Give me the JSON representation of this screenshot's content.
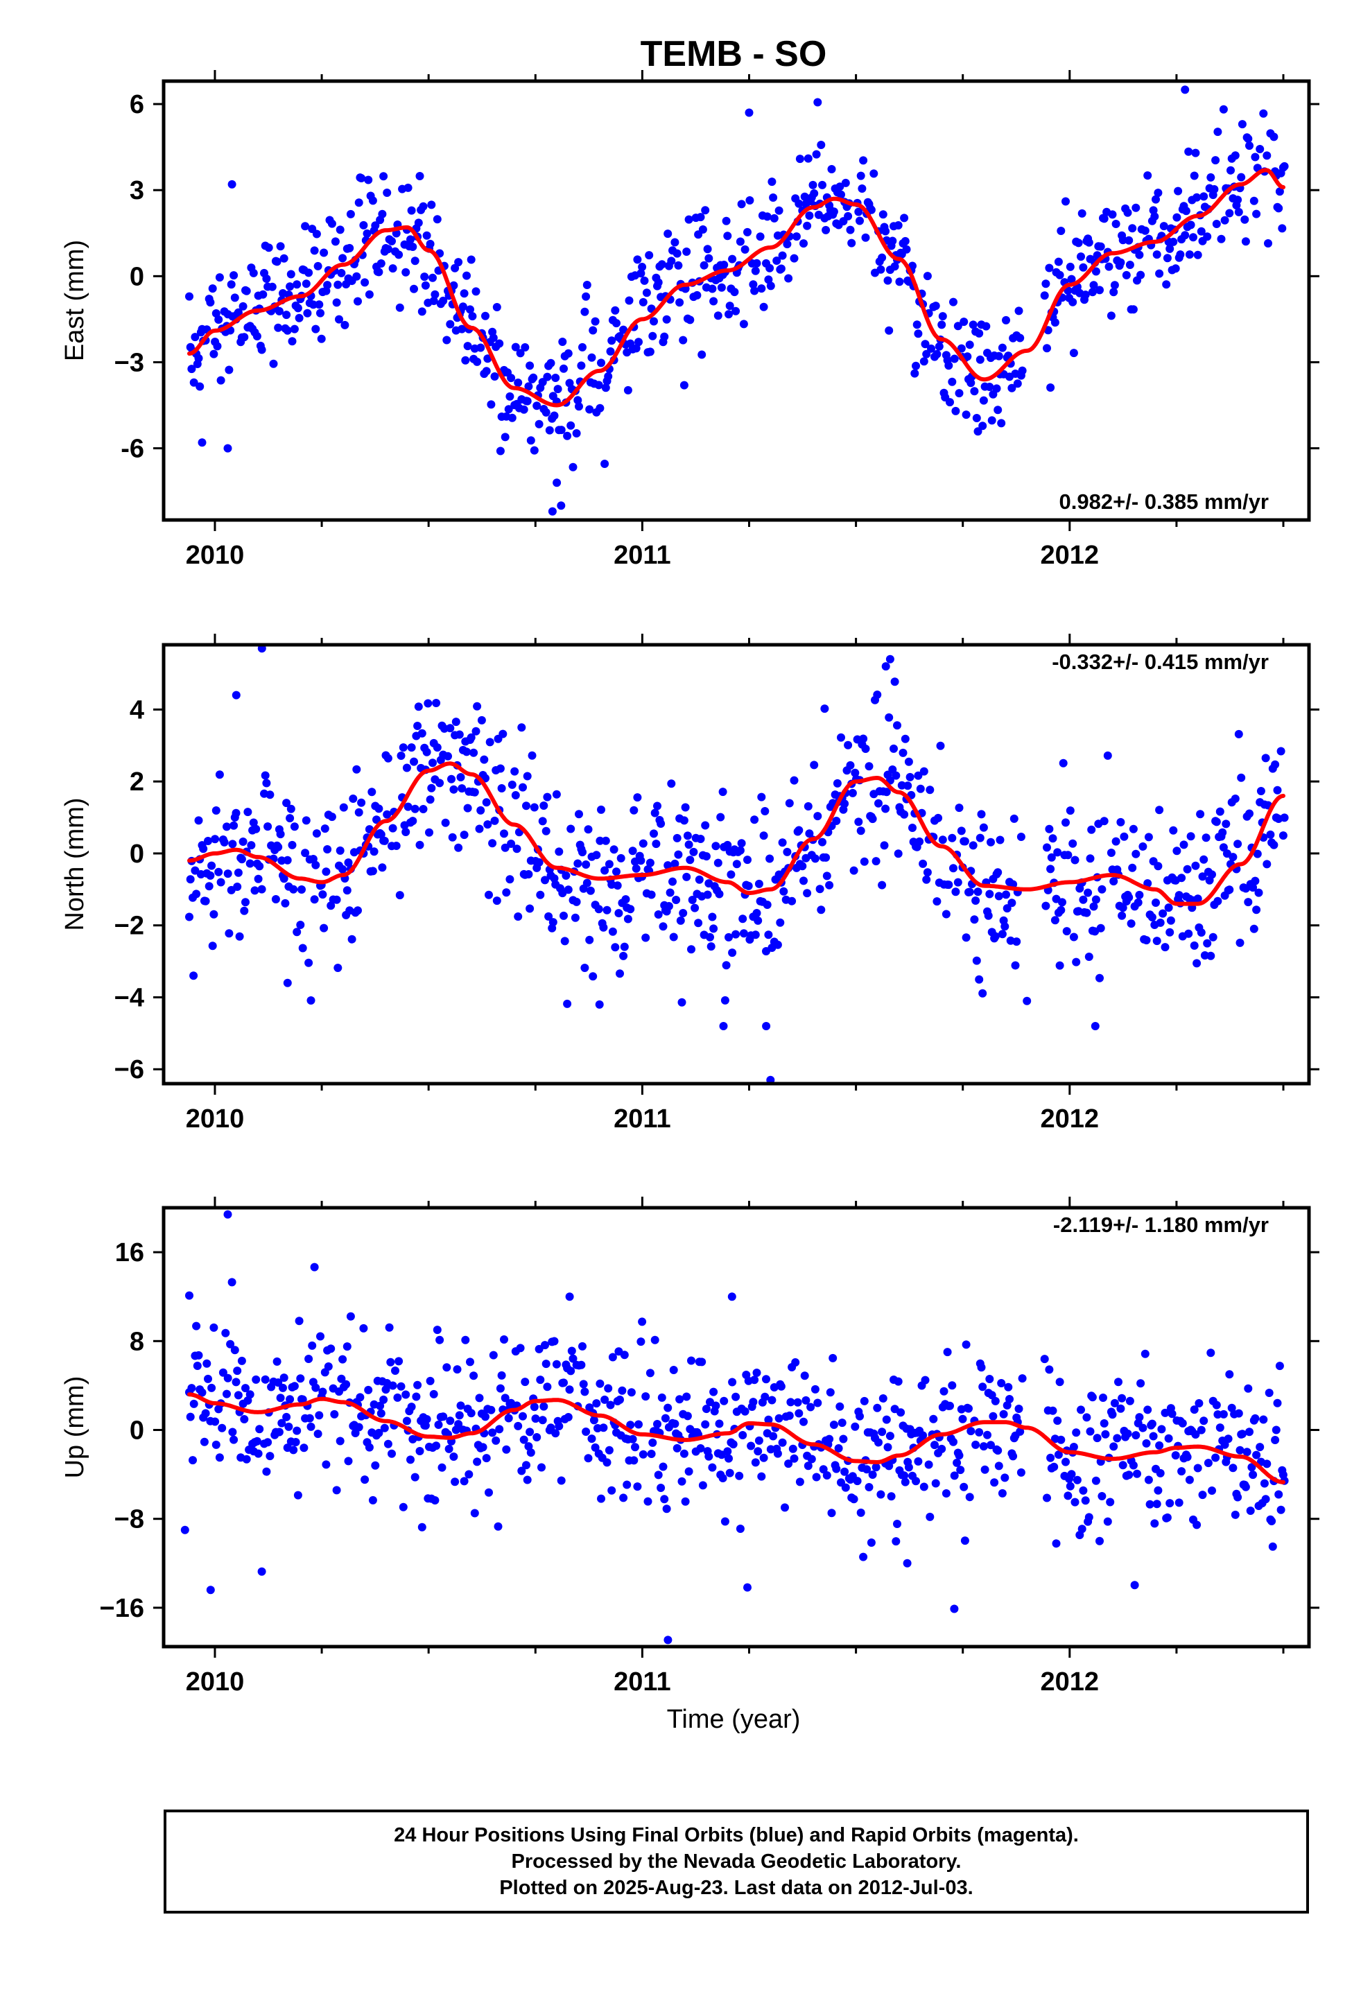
{
  "title": "TEMB - SO",
  "xlabel": "Time (year)",
  "x_ticks": [
    "2010",
    "2011",
    "2012"
  ],
  "colors": {
    "final_orbits": "#0000ff",
    "model": "#ff0000",
    "rapid_orbits": "#ff00ff"
  },
  "footer": {
    "line1": "24 Hour Positions Using Final Orbits (blue) and Rapid Orbits (magenta).",
    "line2": "Processed by the Nevada Geodetic Laboratory.",
    "line3": "Plotted on 2025-Aug-23. Last data on 2012-Jul-03."
  },
  "chart_data": [
    {
      "type": "scatter",
      "component": "east",
      "ylabel": "East (mm)",
      "xlim": [
        2009.88,
        2012.56
      ],
      "ylim": [
        -8.5,
        6.8
      ],
      "yticks": [
        6,
        3,
        0,
        -3,
        -6
      ],
      "ytick_labels": [
        "6",
        "3",
        "0",
        "−3",
        "-6"
      ],
      "rate_label": "0.982+/- 0.385 mm/yr",
      "rate_position": "bottom-right",
      "model_curve": {
        "x": [
          2009.94,
          2010.0,
          2010.1,
          2010.2,
          2010.3,
          2010.4,
          2010.45,
          2010.5,
          2010.6,
          2010.7,
          2010.8,
          2010.9,
          2011.0,
          2011.1,
          2011.2,
          2011.3,
          2011.4,
          2011.45,
          2011.5,
          2011.6,
          2011.7,
          2011.8,
          2011.9,
          2012.0,
          2012.1,
          2012.2,
          2012.3,
          2012.4,
          2012.46,
          2012.5
        ],
        "y": [
          -2.7,
          -1.9,
          -1.2,
          -0.7,
          0.4,
          1.6,
          1.7,
          0.9,
          -1.8,
          -3.9,
          -4.5,
          -3.3,
          -1.5,
          -0.3,
          0.2,
          1.0,
          2.4,
          2.7,
          2.5,
          0.6,
          -2.2,
          -3.6,
          -2.6,
          -0.3,
          0.8,
          1.2,
          2.1,
          3.2,
          3.7,
          3.1
        ]
      },
      "trend": {
        "knots_x": [
          2009.94,
          2010.0,
          2010.1,
          2010.2,
          2010.3,
          2010.4,
          2010.45,
          2010.5,
          2010.6,
          2010.7,
          2010.8,
          2010.9,
          2011.0,
          2011.1,
          2011.2,
          2011.3,
          2011.4,
          2011.45,
          2011.5,
          2011.6,
          2011.7,
          2011.8,
          2011.9,
          2012.0,
          2012.1,
          2012.2,
          2012.3,
          2012.4,
          2012.46,
          2012.5
        ],
        "knots_y": [
          -2.7,
          -1.9,
          -1.2,
          -0.7,
          0.4,
          1.6,
          1.7,
          0.9,
          -1.8,
          -3.9,
          -4.5,
          -3.3,
          -1.5,
          -0.3,
          0.2,
          1.0,
          2.4,
          2.7,
          2.5,
          0.6,
          -2.2,
          -3.6,
          -2.6,
          -0.3,
          0.8,
          1.2,
          2.1,
          3.2,
          3.7,
          3.1
        ],
        "scatter_sd": 1.1,
        "outliers": [
          [
            2010.04,
            3.2
          ],
          [
            2010.79,
            -8.2
          ],
          [
            2010.81,
            -8.0
          ],
          [
            2010.8,
            -7.2
          ],
          [
            2011.25,
            5.7
          ],
          [
            2012.27,
            6.5
          ],
          [
            2010.03,
            -6.0
          ],
          [
            2009.97,
            -5.8
          ]
        ]
      }
    },
    {
      "type": "scatter",
      "component": "north",
      "ylabel": "North (mm)",
      "xlim": [
        2009.88,
        2012.56
      ],
      "ylim": [
        -6.4,
        5.8
      ],
      "yticks": [
        4,
        2,
        0,
        -2,
        -4,
        -6
      ],
      "ytick_labels": [
        "4",
        "2",
        "0",
        "−2",
        "−4",
        "−6"
      ],
      "rate_label": "-0.332+/- 0.415 mm/yr",
      "rate_position": "top-right",
      "model_curve": {
        "x": [
          2009.94,
          2010.0,
          2010.05,
          2010.1,
          2010.2,
          2010.25,
          2010.3,
          2010.4,
          2010.5,
          2010.55,
          2010.6,
          2010.7,
          2010.8,
          2010.9,
          2011.0,
          2011.1,
          2011.2,
          2011.25,
          2011.3,
          2011.4,
          2011.5,
          2011.55,
          2011.6,
          2011.7,
          2011.8,
          2011.9,
          2012.0,
          2012.1,
          2012.2,
          2012.25,
          2012.3,
          2012.4,
          2012.5
        ],
        "y": [
          -0.2,
          0.0,
          0.1,
          -0.1,
          -0.7,
          -0.8,
          -0.6,
          0.9,
          2.3,
          2.5,
          2.2,
          0.8,
          -0.4,
          -0.7,
          -0.6,
          -0.4,
          -0.8,
          -1.1,
          -1.0,
          0.4,
          2.0,
          2.1,
          1.7,
          0.2,
          -0.9,
          -1.0,
          -0.8,
          -0.6,
          -1.0,
          -1.4,
          -1.4,
          -0.3,
          1.6
        ]
      },
      "trend": {
        "knots_x": [
          2009.94,
          2010.0,
          2010.05,
          2010.1,
          2010.2,
          2010.25,
          2010.3,
          2010.4,
          2010.5,
          2010.55,
          2010.6,
          2010.7,
          2010.8,
          2010.9,
          2011.0,
          2011.1,
          2011.2,
          2011.25,
          2011.3,
          2011.4,
          2011.5,
          2011.55,
          2011.6,
          2011.7,
          2011.8,
          2011.9,
          2012.0,
          2012.1,
          2012.2,
          2012.25,
          2012.3,
          2012.4,
          2012.5
        ],
        "knots_y": [
          -0.2,
          0.0,
          0.1,
          -0.1,
          -0.7,
          -0.8,
          -0.6,
          0.9,
          2.3,
          2.5,
          2.2,
          0.8,
          -0.4,
          -0.7,
          -0.6,
          -0.4,
          -0.8,
          -1.1,
          -1.0,
          0.4,
          2.0,
          2.1,
          1.7,
          0.2,
          -0.9,
          -1.0,
          -0.8,
          -0.6,
          -1.0,
          -1.4,
          -1.4,
          -0.3,
          1.6
        ],
        "scatter_sd": 1.15,
        "outliers": [
          [
            2010.11,
            5.7
          ],
          [
            2010.05,
            4.4
          ],
          [
            2011.57,
            5.2
          ],
          [
            2011.58,
            5.4
          ],
          [
            2011.3,
            -6.3
          ],
          [
            2011.29,
            -4.8
          ],
          [
            2011.19,
            -4.8
          ],
          [
            2010.9,
            -4.2
          ],
          [
            2009.95,
            -3.4
          ],
          [
            2012.06,
            -4.8
          ],
          [
            2011.9,
            -4.1
          ],
          [
            2010.17,
            -3.6
          ]
        ]
      }
    },
    {
      "type": "scatter",
      "component": "up",
      "ylabel": "Up (mm)",
      "xlim": [
        2009.88,
        2012.56
      ],
      "ylim": [
        -19.5,
        20.0
      ],
      "yticks": [
        16,
        8,
        0,
        -8,
        -16
      ],
      "ytick_labels": [
        "16",
        "8",
        "0",
        "−8",
        "−16"
      ],
      "rate_label": "-2.119+/- 1.180 mm/yr",
      "rate_position": "top-right",
      "model_curve": {
        "x": [
          2009.94,
          2010.0,
          2010.1,
          2010.2,
          2010.25,
          2010.3,
          2010.4,
          2010.5,
          2010.55,
          2010.6,
          2010.7,
          2010.75,
          2010.8,
          2010.9,
          2011.0,
          2011.1,
          2011.2,
          2011.25,
          2011.3,
          2011.4,
          2011.5,
          2011.55,
          2011.6,
          2011.7,
          2011.8,
          2011.85,
          2011.9,
          2012.0,
          2012.1,
          2012.2,
          2012.25,
          2012.3,
          2012.4,
          2012.5
        ],
        "y": [
          3.2,
          2.4,
          1.6,
          2.3,
          2.8,
          2.5,
          0.8,
          -0.6,
          -0.7,
          -0.3,
          1.8,
          2.6,
          2.7,
          1.3,
          -0.4,
          -0.9,
          -0.3,
          0.6,
          0.5,
          -1.3,
          -2.8,
          -2.9,
          -2.3,
          -0.4,
          0.7,
          0.7,
          0.2,
          -2.0,
          -2.6,
          -2.0,
          -1.6,
          -1.5,
          -2.4,
          -4.7
        ]
      },
      "trend": {
        "knots_x": [
          2009.94,
          2010.0,
          2010.1,
          2010.2,
          2010.25,
          2010.3,
          2010.4,
          2010.5,
          2010.55,
          2010.6,
          2010.7,
          2010.75,
          2010.8,
          2010.9,
          2011.0,
          2011.1,
          2011.2,
          2011.25,
          2011.3,
          2011.4,
          2011.5,
          2011.55,
          2011.6,
          2011.7,
          2011.8,
          2011.85,
          2011.9,
          2012.0,
          2012.1,
          2012.2,
          2012.25,
          2012.3,
          2012.4,
          2012.5
        ],
        "knots_y": [
          3.2,
          2.4,
          1.6,
          2.3,
          2.8,
          2.5,
          0.8,
          -0.6,
          -0.7,
          -0.3,
          1.8,
          2.6,
          2.7,
          1.3,
          -0.4,
          -0.9,
          -0.3,
          0.6,
          0.5,
          -1.3,
          -2.8,
          -2.9,
          -2.3,
          -0.4,
          0.7,
          0.7,
          0.2,
          -2.0,
          -2.6,
          -2.0,
          -1.6,
          -1.5,
          -2.4,
          -4.7
        ],
        "scatter_sd": 3.6,
        "outliers": [
          [
            2010.03,
            19.4
          ],
          [
            2010.04,
            13.3
          ],
          [
            2009.94,
            12.1
          ],
          [
            2009.99,
            -14.4
          ],
          [
            2011.06,
            -18.9
          ],
          [
            2011.73,
            -16.1
          ],
          [
            2011.62,
            -12.0
          ],
          [
            2009.93,
            -9.0
          ],
          [
            2011.21,
            12.0
          ],
          [
            2010.83,
            12.0
          ],
          [
            2012.07,
            -10.0
          ]
        ]
      }
    }
  ]
}
